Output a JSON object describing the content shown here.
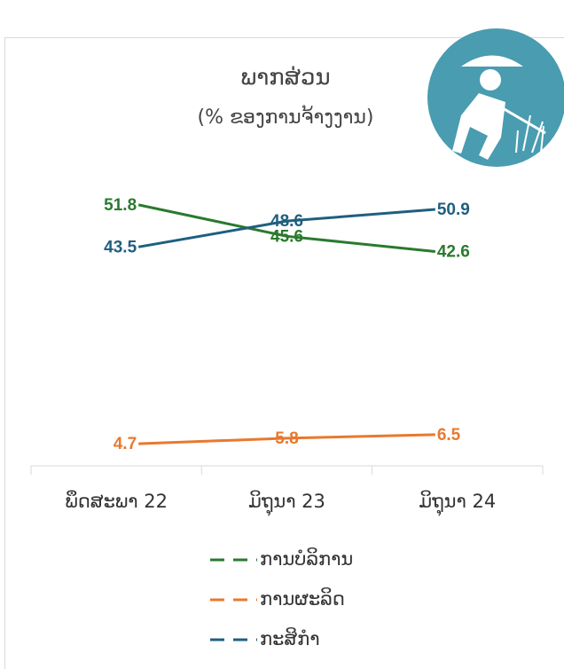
{
  "chart_data": {
    "type": "line",
    "title": "ພາກສ່ວນ",
    "subtitle": "(% ຂອງການຈ້າງງານ)",
    "categories": [
      "ພຶດສະພາ 22",
      "ມິຖຸນາ 23",
      "ມິຖຸນາ 24"
    ],
    "series": [
      {
        "name": "ການບໍລິການ",
        "color": "#2a7a2e",
        "values": [
          51.8,
          45.6,
          42.6
        ]
      },
      {
        "name": "ການຜະລິດ",
        "color": "#e8792f",
        "values": [
          4.7,
          5.8,
          6.5
        ]
      },
      {
        "name": "ກະສິກຳ",
        "color": "#1f5f80",
        "values": [
          43.5,
          48.6,
          50.9
        ]
      }
    ],
    "ylim": [
      0,
      60
    ]
  }
}
